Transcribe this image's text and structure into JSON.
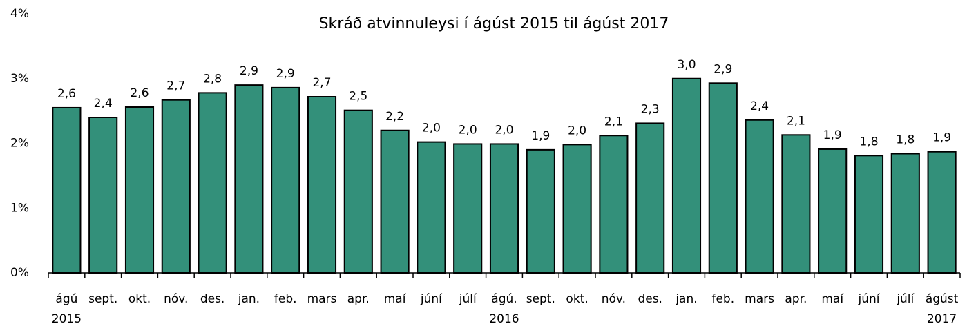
{
  "chart_data": {
    "type": "bar",
    "title": "Skráð atvinnuleysi í ágúst 2015 til ágúst 2017",
    "categories": [
      "ágú",
      "sept.",
      "okt.",
      "nóv.",
      "des.",
      "jan.",
      "feb.",
      "mars",
      "apr.",
      "maí",
      "júní",
      "júlí",
      "ágú.",
      "sept.",
      "okt.",
      "nóv.",
      "des.",
      "jan.",
      "feb.",
      "mars",
      "apr.",
      "maí",
      "júní",
      "júlí",
      "ágúst"
    ],
    "year_labels": [
      "2015",
      "2016",
      "2017"
    ],
    "values": [
      2.55,
      2.4,
      2.56,
      2.67,
      2.78,
      2.9,
      2.86,
      2.72,
      2.51,
      2.2,
      2.02,
      1.99,
      1.99,
      1.9,
      1.98,
      2.12,
      2.31,
      3.0,
      2.93,
      2.36,
      2.13,
      1.91,
      1.81,
      1.84,
      1.87
    ],
    "value_labels": [
      "2,6",
      "2,4",
      "2,6",
      "2,7",
      "2,8",
      "2,9",
      "2,9",
      "2,7",
      "2,5",
      "2,2",
      "2,0",
      "2,0",
      "2,0",
      "1,9",
      "2,0",
      "2,1",
      "2,3",
      "3,0",
      "2,9",
      "2,4",
      "2,1",
      "1,9",
      "1,8",
      "1,8",
      "1,9"
    ],
    "color": "#33907a",
    "ylim": [
      0,
      4
    ],
    "yticks": [
      {
        "value": 0,
        "label": "0%"
      },
      {
        "value": 1,
        "label": "1%"
      },
      {
        "value": 2,
        "label": "2%"
      },
      {
        "value": 3,
        "label": "3%"
      },
      {
        "value": 4,
        "label": "4%"
      }
    ],
    "grid": false
  }
}
